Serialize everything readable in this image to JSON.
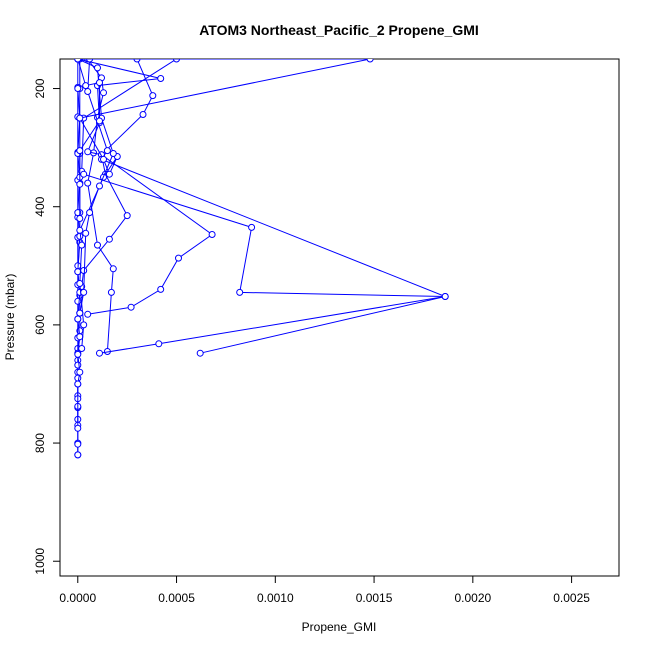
{
  "chart_data": {
    "type": "line",
    "title": "ATOM3 Northeast_Pacific_2 Propene_GMI",
    "xlabel": "Propene_GMI",
    "ylabel": "Pressure (mbar)",
    "xlim": [
      -9e-05,
      0.00274
    ],
    "ylim": [
      1025,
      150
    ],
    "y_reversed": true,
    "grid": false,
    "x_ticks": [
      {
        "value": 0.0,
        "label": "0.0000"
      },
      {
        "value": 0.0005,
        "label": "0.0005"
      },
      {
        "value": 0.001,
        "label": "0.0010"
      },
      {
        "value": 0.0015,
        "label": "0.0015"
      },
      {
        "value": 0.002,
        "label": "0.0020"
      },
      {
        "value": 0.0025,
        "label": "0.0025"
      }
    ],
    "y_ticks": [
      {
        "value": 200,
        "label": "200"
      },
      {
        "value": 400,
        "label": "400"
      },
      {
        "value": 600,
        "label": "600"
      },
      {
        "value": 800,
        "label": "800"
      },
      {
        "value": 1000,
        "label": "1000"
      }
    ],
    "color": "#0000ff",
    "marker": "open-circle",
    "series": [
      {
        "x": [
          1e-05,
          1e-05,
          1e-05,
          1e-05,
          1e-05,
          1e-05,
          1e-05,
          0.0,
          1e-05,
          1e-05,
          1e-05,
          0.0,
          0.0,
          0.0,
          0.0,
          0.0,
          0.0,
          0.0,
          0.0,
          0.0
        ],
        "y": [
          150,
          200,
          250,
          310,
          360,
          410,
          460,
          510,
          550,
          580,
          610,
          640,
          660,
          680,
          700,
          720,
          740,
          760,
          800,
          820
        ]
      },
      {
        "x": [
          0.0,
          0.0,
          0.0,
          0.0,
          0.0,
          0.0,
          0.0,
          0.0,
          0.0,
          0.0,
          0.0,
          0.0,
          0.0,
          0.0,
          0.0,
          0.0,
          0.0,
          0.0,
          0.0,
          0.0
        ],
        "y": [
          198,
          248,
          308,
          355,
          418,
          452,
          500,
          532,
          560,
          590,
          622,
          648,
          668,
          690,
          725,
          738,
          770,
          802,
          820,
          150
        ]
      },
      {
        "x": [
          0.0,
          1e-05,
          0.0,
          1e-05,
          0.0,
          1e-05,
          0.0,
          1e-05,
          0.0,
          1e-05,
          0.0,
          1e-05,
          0.0,
          0.0
        ],
        "y": [
          200,
          250,
          310,
          350,
          410,
          450,
          510,
          545,
          590,
          620,
          650,
          680,
          700,
          775
        ]
      },
      {
        "x": [
          5e-05,
          0.00012,
          0.00013,
          0.0001,
          8e-05,
          5e-05,
          0.0001,
          0.00018,
          0.00017,
          0.00015
        ],
        "y": [
          150,
          182,
          207,
          249,
          309,
          360,
          465,
          505,
          545,
          645
        ]
      },
      {
        "x": [
          0.0,
          0.00042,
          0.0001,
          0.00011,
          5e-05,
          0.00012,
          0.00068,
          0.00051,
          0.00042,
          0.00027,
          5e-05
        ],
        "y": [
          150,
          183,
          195,
          258,
          307,
          312,
          447,
          487,
          540,
          570,
          582
        ]
      },
      {
        "x": [
          0.0003,
          0.00038,
          0.00033,
          0.00012,
          0.00014,
          0.00025,
          0.00016,
          3e-05,
          2e-05
        ],
        "y": [
          150,
          212,
          244,
          312,
          345,
          415,
          455,
          508,
          535
        ]
      },
      {
        "x": [
          0.0,
          0.0005,
          3e-05,
          2e-05,
          3e-05,
          0.00088,
          0.00082,
          0.00186,
          0.00041,
          0.00011
        ],
        "y": [
          150,
          150,
          250,
          340,
          345,
          435,
          545,
          552,
          632,
          648
        ]
      },
      {
        "x": [
          6e-05,
          5e-05,
          0.00015,
          0.00012,
          0.00186,
          0.00062
        ],
        "y": [
          150,
          205,
          305,
          320,
          552,
          648
        ]
      },
      {
        "x": [
          0.0,
          0.00148,
          1e-05,
          0.00013,
          0.00016,
          0.0002,
          0.00013,
          1e-05,
          2e-05,
          1e-05,
          3e-05,
          2e-05
        ],
        "y": [
          150,
          150,
          250,
          320,
          345,
          315,
          350,
          440,
          465,
          530,
          600,
          640
        ]
      },
      {
        "x": [
          0.0,
          0.0001,
          0.00012,
          0.00018,
          0.00011,
          6e-05,
          4e-05,
          3e-05,
          1e-05
        ],
        "y": [
          150,
          165,
          250,
          310,
          365,
          410,
          445,
          545,
          580
        ]
      },
      {
        "x": [
          0.0,
          4e-05,
          0.00011,
          0.00011,
          1e-05,
          1e-05,
          1e-05
        ],
        "y": [
          150,
          195,
          190,
          255,
          305,
          362,
          420
        ]
      }
    ]
  }
}
